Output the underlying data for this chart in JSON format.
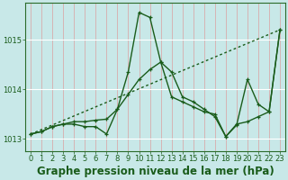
{
  "line1": {
    "x": [
      0,
      23
    ],
    "y": [
      1013.1,
      1015.2
    ],
    "style": "dotted",
    "color": "#1a5c1a",
    "linewidth": 1.0
  },
  "line2": {
    "x": [
      0,
      1,
      2,
      3,
      4,
      5,
      6,
      7,
      8,
      9,
      10,
      11,
      12,
      13,
      14,
      15,
      16,
      17,
      18,
      19,
      20,
      21,
      22,
      23
    ],
    "y": [
      1013.1,
      1013.15,
      1013.25,
      1013.3,
      1013.3,
      1013.25,
      1013.25,
      1013.1,
      1013.6,
      1014.35,
      1015.55,
      1015.45,
      1014.55,
      1014.35,
      1013.85,
      1013.75,
      1013.6,
      1013.45,
      1013.05,
      1013.3,
      1013.35,
      1013.45,
      1013.55,
      1015.2
    ],
    "style": "solid",
    "color": "#1a5c1a",
    "linewidth": 1.0,
    "marker": "+"
  },
  "line3": {
    "x": [
      0,
      1,
      2,
      3,
      4,
      5,
      6,
      7,
      8,
      9,
      10,
      11,
      12,
      13,
      14,
      15,
      16,
      17,
      18,
      19,
      20,
      21,
      22,
      23
    ],
    "y": [
      1013.1,
      1013.15,
      1013.25,
      1013.3,
      1013.35,
      1013.35,
      1013.38,
      1013.4,
      1013.6,
      1013.9,
      1014.2,
      1014.4,
      1014.55,
      1013.85,
      1013.75,
      1013.65,
      1013.55,
      1013.5,
      1013.05,
      1013.28,
      1014.2,
      1013.7,
      1013.55,
      1015.2
    ],
    "style": "solid",
    "color": "#1a5c1a",
    "linewidth": 1.0,
    "marker": "+"
  },
  "background_color": "#c8e8e8",
  "grid_v_color": "#dba0a0",
  "grid_h_color": "#ffffff",
  "ylabel_values": [
    1013,
    1014,
    1015
  ],
  "xlabel_values": [
    0,
    1,
    2,
    3,
    4,
    5,
    6,
    7,
    8,
    9,
    10,
    11,
    12,
    13,
    14,
    15,
    16,
    17,
    18,
    19,
    20,
    21,
    22,
    23
  ],
  "ylim": [
    1012.75,
    1015.75
  ],
  "xlim": [
    -0.5,
    23.5
  ],
  "title": "Graphe pression niveau de la mer (hPa)",
  "title_fontsize": 8.5,
  "tick_fontsize": 6,
  "axis_color": "#2a6b2a",
  "dark_green": "#1a5c1a"
}
